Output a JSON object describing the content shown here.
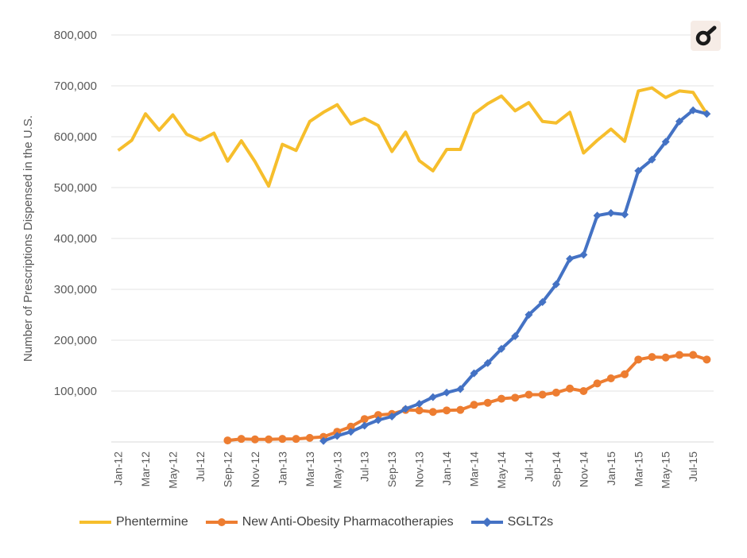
{
  "chart_data": {
    "type": "line",
    "title": "",
    "xlabel": "",
    "ylabel": "Number of Prescriptions Dispensed in the U.S.",
    "ylim": [
      0,
      800000
    ],
    "y_ticks": [
      {
        "value": 100000,
        "label": "100,000"
      },
      {
        "value": 200000,
        "label": "200,000"
      },
      {
        "value": 300000,
        "label": "300,000"
      },
      {
        "value": 400000,
        "label": "400,000"
      },
      {
        "value": 500000,
        "label": "500,000"
      },
      {
        "value": 600000,
        "label": "600,000"
      },
      {
        "value": 700000,
        "label": "700,000"
      },
      {
        "value": 800000,
        "label": "800,000"
      }
    ],
    "grid": true,
    "legend_position": "bottom",
    "x": [
      "Jan-12",
      "Feb-12",
      "Mar-12",
      "Apr-12",
      "May-12",
      "Jun-12",
      "Jul-12",
      "Aug-12",
      "Sep-12",
      "Oct-12",
      "Nov-12",
      "Dec-12",
      "Jan-13",
      "Feb-13",
      "Mar-13",
      "Apr-13",
      "May-13",
      "Jun-13",
      "Jul-13",
      "Aug-13",
      "Sep-13",
      "Oct-13",
      "Nov-13",
      "Dec-13",
      "Jan-14",
      "Feb-14",
      "Mar-14",
      "Apr-14",
      "May-14",
      "Jun-14",
      "Jul-14",
      "Aug-14",
      "Sep-14",
      "Oct-14",
      "Nov-14",
      "Dec-14",
      "Jan-15",
      "Feb-15",
      "Mar-15",
      "Apr-15",
      "May-15",
      "Jun-15",
      "Jul-15",
      "Aug-15"
    ],
    "x_tick_labels": [
      "Jan-12",
      "Mar-12",
      "May-12",
      "Jul-12",
      "Sep-12",
      "Nov-12",
      "Jan-13",
      "Mar-13",
      "May-13",
      "Jul-13",
      "Sep-13",
      "Nov-13",
      "Jan-14",
      "Mar-14",
      "May-14",
      "Jul-14",
      "Sep-14",
      "Nov-14",
      "Jan-15",
      "Mar-15",
      "May-15",
      "Jul-15"
    ],
    "series": [
      {
        "name": "Phentermine",
        "color": "#f6be2c",
        "marker": "none",
        "values": [
          573000,
          593000,
          645000,
          613000,
          643000,
          605000,
          593000,
          607000,
          552000,
          592000,
          551000,
          503000,
          585000,
          573000,
          630000,
          648000,
          663000,
          625000,
          636000,
          622000,
          571000,
          609000,
          553000,
          533000,
          575000,
          575000,
          645000,
          665000,
          680000,
          651000,
          667000,
          630000,
          627000,
          648000,
          568000,
          593000,
          615000,
          591000,
          690000,
          696000,
          677000,
          690000,
          687000,
          645000
        ]
      },
      {
        "name": "New Anti-Obesity Pharmacotherapies",
        "color": "#ed7d31",
        "marker": "circle",
        "values": [
          null,
          null,
          null,
          null,
          null,
          null,
          null,
          null,
          3000,
          6000,
          5000,
          5000,
          6000,
          6000,
          8000,
          10000,
          20000,
          30000,
          45000,
          53000,
          55000,
          63000,
          62000,
          59000,
          62000,
          63000,
          73000,
          77000,
          85000,
          87000,
          93000,
          93000,
          97000,
          105000,
          100000,
          115000,
          125000,
          133000,
          162000,
          167000,
          166000,
          171000,
          171000,
          162000
        ]
      },
      {
        "name": "SGLT2s",
        "color": "#4472c4",
        "marker": "diamond",
        "values": [
          null,
          null,
          null,
          null,
          null,
          null,
          null,
          null,
          null,
          null,
          null,
          null,
          null,
          null,
          null,
          2000,
          12000,
          20000,
          32000,
          43000,
          50000,
          65000,
          75000,
          88000,
          97000,
          104000,
          135000,
          155000,
          183000,
          208000,
          250000,
          275000,
          310000,
          360000,
          368000,
          445000,
          450000,
          447000,
          533000,
          555000,
          590000,
          630000,
          652000,
          645000
        ]
      }
    ]
  },
  "badge": {
    "icon": "magnifier-logo-icon"
  }
}
